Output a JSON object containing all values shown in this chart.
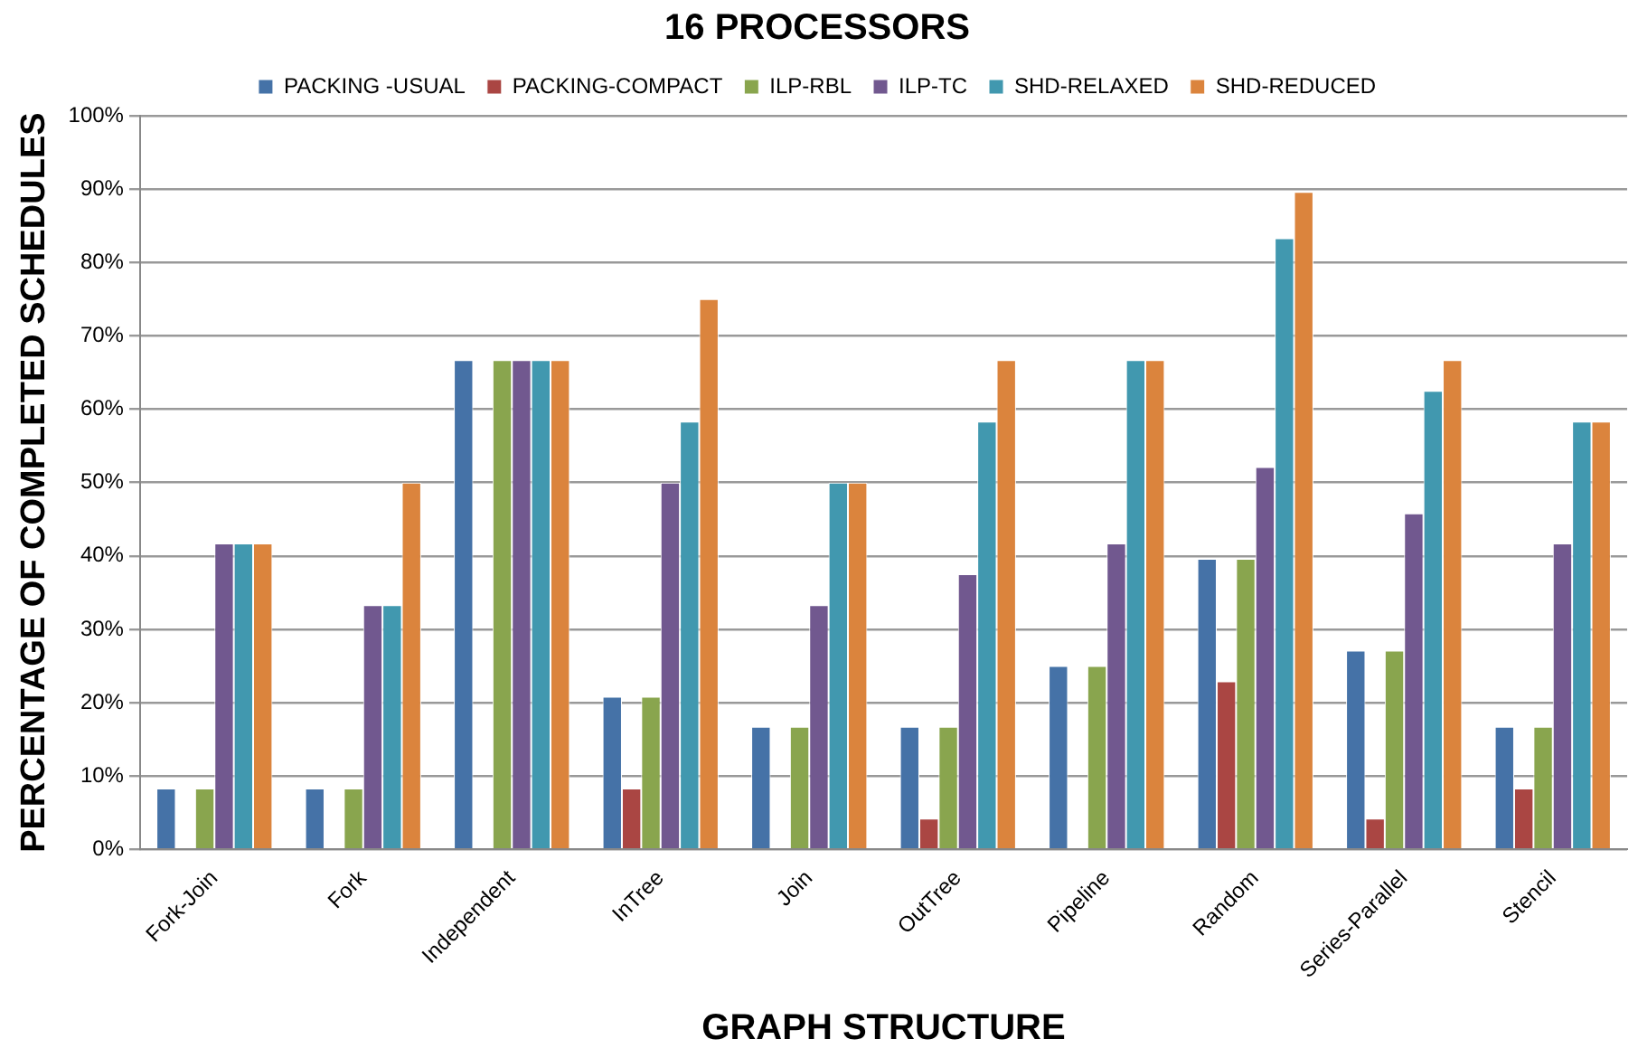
{
  "chart_data": {
    "type": "bar",
    "title": "16 PROCESSORS",
    "xlabel": "GRAPH STRUCTURE",
    "ylabel": "PERCENTAGE OF COMPLETED SCHEDULES",
    "categories": [
      "Fork-Join",
      "Fork",
      "Independent",
      "InTree",
      "Join",
      "OutTree",
      "Pipeline",
      "Random",
      "Series-Parallel",
      "Stencil"
    ],
    "series": [
      {
        "name": "PACKING -USUAL",
        "color": "#4572a7",
        "values": [
          8.3,
          8.3,
          66.7,
          20.8,
          16.7,
          16.7,
          25,
          39.6,
          27.1,
          16.7
        ]
      },
      {
        "name": "PACKING-COMPACT",
        "color": "#aa4643",
        "values": [
          0,
          0,
          0,
          8.3,
          0,
          4.2,
          0,
          22.9,
          4.2,
          8.3
        ]
      },
      {
        "name": "ILP-RBL",
        "color": "#89a54e",
        "values": [
          8.3,
          8.3,
          66.7,
          20.8,
          16.7,
          16.7,
          25,
          39.6,
          27.1,
          16.7
        ]
      },
      {
        "name": "ILP-TC",
        "color": "#71588f",
        "values": [
          41.7,
          33.3,
          66.7,
          50,
          33.3,
          37.5,
          41.7,
          52.1,
          45.8,
          41.7
        ]
      },
      {
        "name": "SHD-RELAXED",
        "color": "#4198af",
        "values": [
          41.7,
          33.3,
          66.7,
          58.3,
          50,
          58.3,
          66.7,
          83.3,
          62.5,
          58.3
        ]
      },
      {
        "name": "SHD-REDUCED",
        "color": "#db843d",
        "values": [
          41.7,
          50,
          66.7,
          75,
          50,
          66.7,
          66.7,
          89.6,
          66.7,
          58.3
        ]
      }
    ],
    "ylim": [
      0,
      100
    ],
    "yticks": [
      {
        "value": 0,
        "label": "0%"
      },
      {
        "value": 10,
        "label": "10%"
      },
      {
        "value": 20,
        "label": "20%"
      },
      {
        "value": 30,
        "label": "30%"
      },
      {
        "value": 40,
        "label": "40%"
      },
      {
        "value": 50,
        "label": "50%"
      },
      {
        "value": 60,
        "label": "60%"
      },
      {
        "value": 70,
        "label": "70%"
      },
      {
        "value": 80,
        "label": "80%"
      },
      {
        "value": 90,
        "label": "90%"
      },
      {
        "value": 100,
        "label": "100%"
      }
    ],
    "grid": "y",
    "legend": "top"
  }
}
